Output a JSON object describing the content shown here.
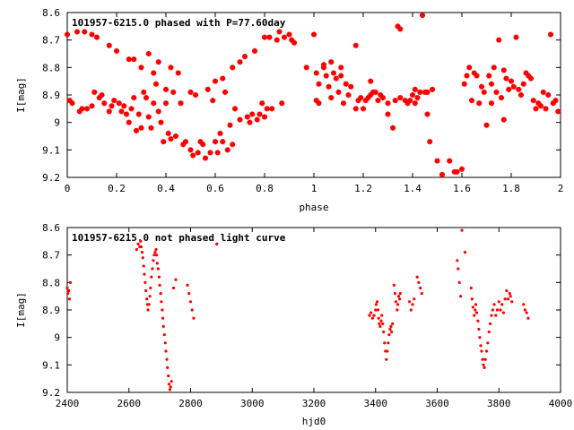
{
  "chart_data": [
    {
      "type": "scatter",
      "title": "101957-6215.0 phased with P=77.60day",
      "xlabel": "phase",
      "ylabel": "I[mag]",
      "xlim": [
        0,
        2
      ],
      "ylim": [
        9.2,
        8.6
      ],
      "y_inverted": true,
      "grid": false,
      "marker": "asterisk",
      "color": "#ff0000",
      "xticks": [
        "0",
        "0.2",
        "0.4",
        "0.6",
        "0.8",
        "1",
        "1.2",
        "1.4",
        "1.6",
        "1.8",
        "2"
      ],
      "yticks": [
        "8.6",
        "8.7",
        "8.8",
        "8.9",
        "9",
        "9.1",
        "9.2"
      ],
      "points": [
        [
          0.0,
          8.68
        ],
        [
          0.01,
          8.92
        ],
        [
          0.02,
          8.93
        ],
        [
          0.04,
          8.67
        ],
        [
          0.05,
          8.96
        ],
        [
          0.06,
          8.95
        ],
        [
          0.08,
          8.95
        ],
        [
          0.07,
          8.67
        ],
        [
          0.1,
          8.68
        ],
        [
          0.1,
          8.94
        ],
        [
          0.11,
          8.89
        ],
        [
          0.12,
          8.69
        ],
        [
          0.13,
          8.91
        ],
        [
          0.14,
          8.9
        ],
        [
          0.15,
          8.93
        ],
        [
          0.17,
          8.72
        ],
        [
          0.17,
          8.96
        ],
        [
          0.18,
          8.94
        ],
        [
          0.19,
          8.92
        ],
        [
          0.2,
          8.74
        ],
        [
          0.21,
          8.93
        ],
        [
          0.22,
          8.96
        ],
        [
          0.23,
          8.94
        ],
        [
          0.24,
          8.97
        ],
        [
          0.25,
          8.77
        ],
        [
          0.25,
          9.0
        ],
        [
          0.26,
          8.95
        ],
        [
          0.27,
          8.77
        ],
        [
          0.27,
          8.91
        ],
        [
          0.28,
          9.03
        ],
        [
          0.29,
          8.97
        ],
        [
          0.3,
          8.8
        ],
        [
          0.3,
          9.02
        ],
        [
          0.31,
          8.89
        ],
        [
          0.32,
          8.91
        ],
        [
          0.33,
          8.75
        ],
        [
          0.33,
          8.98
        ],
        [
          0.34,
          9.02
        ],
        [
          0.35,
          8.82
        ],
        [
          0.35,
          8.93
        ],
        [
          0.36,
          8.86
        ],
        [
          0.37,
          8.78
        ],
        [
          0.37,
          8.96
        ],
        [
          0.38,
          9.0
        ],
        [
          0.39,
          9.07
        ],
        [
          0.4,
          8.88
        ],
        [
          0.4,
          8.93
        ],
        [
          0.41,
          9.04
        ],
        [
          0.42,
          8.8
        ],
        [
          0.42,
          9.06
        ],
        [
          0.43,
          8.89
        ],
        [
          0.44,
          9.05
        ],
        [
          0.45,
          8.82
        ],
        [
          0.46,
          8.93
        ],
        [
          0.47,
          9.08
        ],
        [
          0.48,
          9.07
        ],
        [
          0.5,
          9.1
        ],
        [
          0.5,
          8.89
        ],
        [
          0.51,
          9.12
        ],
        [
          0.52,
          8.9
        ],
        [
          0.53,
          9.11
        ],
        [
          0.54,
          9.07
        ],
        [
          0.55,
          9.08
        ],
        [
          0.56,
          9.13
        ],
        [
          0.57,
          8.88
        ],
        [
          0.58,
          9.11
        ],
        [
          0.59,
          8.92
        ],
        [
          0.6,
          8.85
        ],
        [
          0.6,
          9.07
        ],
        [
          0.61,
          9.11
        ],
        [
          0.62,
          9.04
        ],
        [
          0.63,
          8.84
        ],
        [
          0.63,
          9.07
        ],
        [
          0.64,
          8.89
        ],
        [
          0.65,
          9.1
        ],
        [
          0.66,
          9.01
        ],
        [
          0.67,
          8.8
        ],
        [
          0.67,
          9.08
        ],
        [
          0.68,
          8.95
        ],
        [
          0.7,
          8.78
        ],
        [
          0.7,
          8.99
        ],
        [
          0.72,
          8.76
        ],
        [
          0.73,
          8.98
        ],
        [
          0.74,
          9.0
        ],
        [
          0.75,
          8.97
        ],
        [
          0.76,
          8.74
        ],
        [
          0.77,
          8.99
        ],
        [
          0.78,
          8.97
        ],
        [
          0.79,
          8.93
        ],
        [
          0.8,
          8.69
        ],
        [
          0.8,
          8.98
        ],
        [
          0.81,
          8.95
        ],
        [
          0.82,
          8.69
        ],
        [
          0.83,
          8.95
        ],
        [
          0.85,
          8.7
        ],
        [
          0.86,
          8.67
        ],
        [
          0.87,
          8.93
        ],
        [
          0.88,
          8.69
        ],
        [
          0.9,
          8.68
        ],
        [
          0.91,
          8.7
        ],
        [
          0.92,
          8.71
        ],
        [
          0.97,
          8.8
        ],
        [
          1.0,
          8.68
        ],
        [
          1.01,
          8.92
        ],
        [
          1.02,
          8.93
        ],
        [
          1.01,
          8.82
        ],
        [
          1.02,
          8.86
        ],
        [
          1.04,
          8.79
        ],
        [
          1.04,
          8.8
        ],
        [
          1.05,
          8.83
        ],
        [
          1.06,
          8.87
        ],
        [
          1.07,
          8.91
        ],
        [
          1.07,
          8.78
        ],
        [
          1.08,
          8.82
        ],
        [
          1.09,
          8.84
        ],
        [
          1.1,
          8.89
        ],
        [
          1.11,
          8.8
        ],
        [
          1.11,
          8.83
        ],
        [
          1.12,
          8.93
        ],
        [
          1.13,
          8.86
        ],
        [
          1.14,
          8.9
        ],
        [
          1.15,
          8.87
        ],
        [
          1.17,
          8.72
        ],
        [
          1.17,
          8.95
        ],
        [
          1.18,
          8.92
        ],
        [
          1.19,
          8.91
        ],
        [
          1.2,
          8.95
        ],
        [
          1.21,
          8.92
        ],
        [
          1.22,
          8.91
        ],
        [
          1.23,
          8.85
        ],
        [
          1.23,
          8.9
        ],
        [
          1.24,
          8.89
        ],
        [
          1.25,
          8.89
        ],
        [
          1.26,
          8.92
        ],
        [
          1.27,
          8.9
        ],
        [
          1.28,
          8.91
        ],
        [
          1.3,
          8.97
        ],
        [
          1.3,
          8.93
        ],
        [
          1.32,
          9.02
        ],
        [
          1.33,
          8.92
        ],
        [
          1.34,
          8.65
        ],
        [
          1.35,
          8.66
        ],
        [
          1.35,
          8.91
        ],
        [
          1.37,
          8.92
        ],
        [
          1.38,
          8.93
        ],
        [
          1.39,
          8.92
        ],
        [
          1.4,
          8.9
        ],
        [
          1.41,
          8.88
        ],
        [
          1.41,
          8.93
        ],
        [
          1.42,
          8.91
        ],
        [
          1.43,
          8.89
        ],
        [
          1.44,
          8.61
        ],
        [
          1.45,
          8.89
        ],
        [
          1.46,
          8.97
        ],
        [
          1.46,
          8.89
        ],
        [
          1.47,
          9.07
        ],
        [
          1.48,
          8.88
        ],
        [
          1.5,
          9.14
        ],
        [
          1.52,
          9.19
        ],
        [
          1.55,
          9.14
        ],
        [
          1.57,
          9.18
        ],
        [
          1.58,
          9.18
        ],
        [
          1.6,
          9.17
        ],
        [
          1.61,
          8.86
        ],
        [
          1.62,
          8.83
        ],
        [
          1.63,
          8.8
        ],
        [
          1.64,
          8.92
        ],
        [
          1.65,
          8.82
        ],
        [
          1.66,
          8.83
        ],
        [
          1.67,
          8.93
        ],
        [
          1.68,
          8.87
        ],
        [
          1.69,
          8.89
        ],
        [
          1.7,
          9.01
        ],
        [
          1.71,
          8.83
        ],
        [
          1.72,
          8.93
        ],
        [
          1.72,
          8.86
        ],
        [
          1.73,
          8.8
        ],
        [
          1.74,
          8.89
        ],
        [
          1.75,
          8.7
        ],
        [
          1.76,
          8.91
        ],
        [
          1.77,
          8.99
        ],
        [
          1.77,
          8.81
        ],
        [
          1.78,
          8.84
        ],
        [
          1.79,
          8.88
        ],
        [
          1.8,
          8.85
        ],
        [
          1.81,
          8.87
        ],
        [
          1.82,
          8.69
        ],
        [
          1.83,
          8.88
        ],
        [
          1.84,
          8.9
        ],
        [
          1.85,
          8.86
        ],
        [
          1.86,
          8.82
        ],
        [
          1.87,
          8.83
        ],
        [
          1.88,
          8.84
        ],
        [
          1.89,
          8.92
        ],
        [
          1.9,
          8.95
        ],
        [
          1.91,
          8.93
        ],
        [
          1.92,
          8.94
        ],
        [
          1.93,
          8.89
        ],
        [
          1.94,
          8.95
        ],
        [
          1.95,
          8.9
        ],
        [
          1.96,
          8.68
        ],
        [
          1.97,
          8.93
        ],
        [
          1.98,
          8.92
        ],
        [
          1.99,
          8.96
        ]
      ]
    },
    {
      "type": "scatter",
      "title": "101957-6215.0 not phased light curve",
      "xlabel": "hjd0",
      "ylabel": "I[mag]",
      "xlim": [
        2400,
        4000
      ],
      "ylim": [
        9.2,
        8.6
      ],
      "y_inverted": true,
      "grid": false,
      "marker": "dot",
      "color": "#ff0000",
      "xticks": [
        "2400",
        "2600",
        "2800",
        "3000",
        "3200",
        "3400",
        "3600",
        "3800",
        "4000"
      ],
      "yticks": [
        "8.6",
        "8.7",
        "8.8",
        "8.9",
        "9",
        "9.1",
        "9.2"
      ],
      "points": [
        [
          2400,
          8.82
        ],
        [
          2402,
          8.84
        ],
        [
          2405,
          8.83
        ],
        [
          2407,
          8.86
        ],
        [
          2410,
          8.8
        ],
        [
          2625,
          8.68
        ],
        [
          2630,
          8.66
        ],
        [
          2635,
          8.67
        ],
        [
          2638,
          8.65
        ],
        [
          2640,
          8.67
        ],
        [
          2643,
          8.69
        ],
        [
          2645,
          8.71
        ],
        [
          2648,
          8.74
        ],
        [
          2650,
          8.77
        ],
        [
          2653,
          8.8
        ],
        [
          2655,
          8.83
        ],
        [
          2658,
          8.86
        ],
        [
          2660,
          8.88
        ],
        [
          2662,
          8.9
        ],
        [
          2665,
          8.88
        ],
        [
          2668,
          8.85
        ],
        [
          2670,
          8.82
        ],
        [
          2673,
          8.78
        ],
        [
          2676,
          8.75
        ],
        [
          2679,
          8.72
        ],
        [
          2682,
          8.7
        ],
        [
          2685,
          8.69
        ],
        [
          2688,
          8.68
        ],
        [
          2690,
          8.7
        ],
        [
          2692,
          8.73
        ],
        [
          2695,
          8.75
        ],
        [
          2698,
          8.78
        ],
        [
          2700,
          8.81
        ],
        [
          2703,
          8.84
        ],
        [
          2705,
          8.87
        ],
        [
          2708,
          8.9
        ],
        [
          2710,
          8.93
        ],
        [
          2712,
          8.96
        ],
        [
          2715,
          8.99
        ],
        [
          2718,
          9.02
        ],
        [
          2720,
          9.05
        ],
        [
          2723,
          9.08
        ],
        [
          2725,
          9.11
        ],
        [
          2728,
          9.14
        ],
        [
          2730,
          9.17
        ],
        [
          2733,
          9.19
        ],
        [
          2735,
          9.18
        ],
        [
          2738,
          9.16
        ],
        [
          2745,
          8.82
        ],
        [
          2752,
          8.79
        ],
        [
          2790,
          8.81
        ],
        [
          2795,
          8.84
        ],
        [
          2800,
          8.87
        ],
        [
          2805,
          8.9
        ],
        [
          2810,
          8.93
        ],
        [
          2885,
          8.66
        ],
        [
          3380,
          8.92
        ],
        [
          3385,
          8.91
        ],
        [
          3390,
          8.93
        ],
        [
          3395,
          8.92
        ],
        [
          3400,
          8.9
        ],
        [
          3402,
          8.88
        ],
        [
          3405,
          8.87
        ],
        [
          3408,
          8.9
        ],
        [
          3410,
          8.93
        ],
        [
          3412,
          8.95
        ],
        [
          3415,
          8.96
        ],
        [
          3418,
          8.94
        ],
        [
          3420,
          8.92
        ],
        [
          3423,
          8.95
        ],
        [
          3426,
          8.98
        ],
        [
          3429,
          9.02
        ],
        [
          3432,
          9.05
        ],
        [
          3435,
          9.08
        ],
        [
          3438,
          9.05
        ],
        [
          3441,
          9.02
        ],
        [
          3444,
          8.99
        ],
        [
          3447,
          8.97
        ],
        [
          3450,
          8.96
        ],
        [
          3452,
          8.98
        ],
        [
          3455,
          8.95
        ],
        [
          3460,
          8.81
        ],
        [
          3463,
          8.84
        ],
        [
          3466,
          8.87
        ],
        [
          3470,
          8.9
        ],
        [
          3472,
          8.88
        ],
        [
          3475,
          8.85
        ],
        [
          3478,
          8.86
        ],
        [
          3480,
          8.84
        ],
        [
          3510,
          8.87
        ],
        [
          3515,
          8.9
        ],
        [
          3520,
          8.88
        ],
        [
          3525,
          8.86
        ],
        [
          3535,
          8.78
        ],
        [
          3540,
          8.8
        ],
        [
          3545,
          8.82
        ],
        [
          3550,
          8.84
        ],
        [
          3665,
          8.72
        ],
        [
          3668,
          8.75
        ],
        [
          3672,
          8.8
        ],
        [
          3676,
          8.85
        ],
        [
          3680,
          8.61
        ],
        [
          3690,
          8.69
        ],
        [
          3710,
          8.82
        ],
        [
          3713,
          8.86
        ],
        [
          3716,
          8.89
        ],
        [
          3720,
          8.92
        ],
        [
          3723,
          8.9
        ],
        [
          3725,
          8.88
        ],
        [
          3728,
          8.91
        ],
        [
          3732,
          8.94
        ],
        [
          3735,
          8.97
        ],
        [
          3738,
          9.0
        ],
        [
          3741,
          9.03
        ],
        [
          3744,
          9.05
        ],
        [
          3747,
          9.08
        ],
        [
          3750,
          9.1
        ],
        [
          3753,
          9.11
        ],
        [
          3756,
          9.08
        ],
        [
          3760,
          9.05
        ],
        [
          3764,
          9.02
        ],
        [
          3768,
          8.98
        ],
        [
          3772,
          8.95
        ],
        [
          3776,
          8.92
        ],
        [
          3780,
          8.9
        ],
        [
          3785,
          8.88
        ],
        [
          3790,
          8.92
        ],
        [
          3795,
          8.9
        ],
        [
          3800,
          8.87
        ],
        [
          3805,
          8.9
        ],
        [
          3810,
          8.88
        ],
        [
          3815,
          8.91
        ],
        [
          3820,
          8.86
        ],
        [
          3825,
          8.83
        ],
        [
          3830,
          8.86
        ],
        [
          3835,
          8.84
        ],
        [
          3838,
          8.85
        ],
        [
          3842,
          8.87
        ],
        [
          3880,
          8.88
        ],
        [
          3885,
          8.9
        ],
        [
          3890,
          8.91
        ],
        [
          3895,
          8.93
        ]
      ]
    }
  ]
}
